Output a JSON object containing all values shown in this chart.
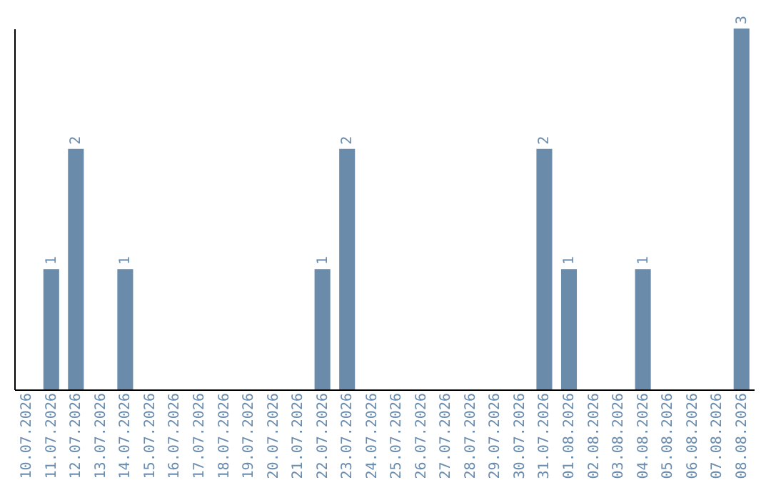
{
  "chart_data": {
    "type": "bar",
    "categories": [
      "10.07.2026",
      "11.07.2026",
      "12.07.2026",
      "13.07.2026",
      "14.07.2026",
      "15.07.2026",
      "16.07.2026",
      "17.07.2026",
      "18.07.2026",
      "19.07.2026",
      "20.07.2026",
      "21.07.2026",
      "22.07.2026",
      "23.07.2026",
      "24.07.2026",
      "25.07.2026",
      "26.07.2026",
      "27.07.2026",
      "28.07.2026",
      "29.07.2026",
      "30.07.2026",
      "31.07.2026",
      "01.08.2026",
      "02.08.2026",
      "03.08.2026",
      "04.08.2026",
      "05.08.2026",
      "06.08.2026",
      "07.08.2026",
      "08.08.2026"
    ],
    "values": [
      null,
      1,
      2,
      null,
      1,
      null,
      null,
      null,
      null,
      null,
      null,
      null,
      1,
      2,
      null,
      null,
      null,
      null,
      null,
      null,
      null,
      2,
      1,
      null,
      null,
      1,
      null,
      null,
      null,
      3
    ],
    "color": "#6a8caa",
    "ylim": [
      0,
      3
    ],
    "data_labels": true,
    "tick_labels": "x"
  }
}
